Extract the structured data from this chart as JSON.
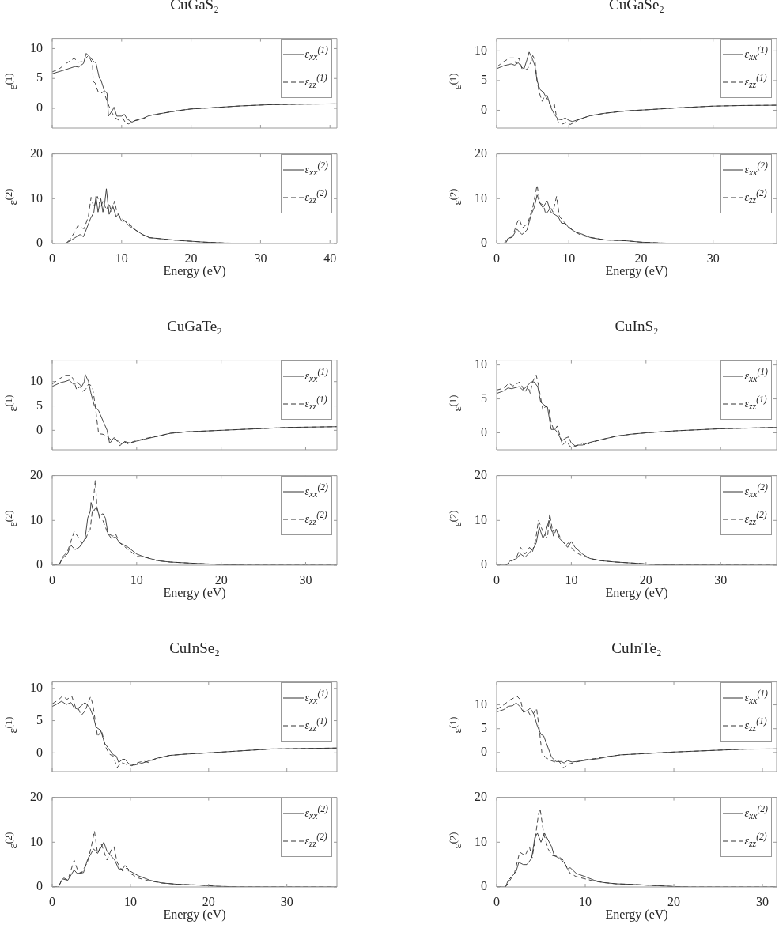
{
  "chart_data": [
    {
      "type": "line",
      "title": "CuGaS₂",
      "ylabel": "ε$^{(1)}$",
      "xlim": [
        0,
        41
      ],
      "xticks": [
        0,
        10,
        20,
        30,
        40
      ],
      "ylim": [
        -3.3,
        11.7
      ],
      "yticks": [
        0,
        5,
        10
      ],
      "tick_labels": "y",
      "legend": "top right",
      "series": [
        {
          "name": "ε$_{xx}$$^{(1)}$",
          "color": "#333333",
          "line_style": "solid",
          "x": [
            0,
            2,
            3.3,
            3.8,
            4.5,
            4.9,
            5.5,
            6,
            6.3,
            6.8,
            7,
            7.5,
            7.9,
            8.1,
            8.7,
            8.9,
            9.3,
            10,
            10.4,
            10.8,
            11.5,
            12,
            13,
            14,
            16,
            18,
            20,
            23,
            27,
            31,
            36,
            41
          ],
          "values": [
            5.8,
            6.5,
            7.0,
            6.9,
            7.5,
            9.2,
            8.5,
            7.8,
            7.6,
            5.0,
            4.8,
            3.0,
            2.5,
            -1.3,
            -0.3,
            0.2,
            -1.3,
            -1.3,
            -1.0,
            -1.8,
            -2.3,
            -2.0,
            -1.7,
            -1.2,
            -0.8,
            -0.4,
            -0.1,
            0.1,
            0.4,
            0.6,
            0.7,
            0.75
          ]
        },
        {
          "name": "ε$_{zz}$$^{(1)}$",
          "color": "#333333",
          "line_style": "dashed",
          "x": [
            0,
            1,
            2,
            3.2,
            3.6,
            4.3,
            5.2,
            5.5,
            5.8,
            5.9,
            6.2,
            6.6,
            7,
            7.4,
            8.2,
            8.5,
            9,
            9.6,
            10.2,
            10.6,
            11,
            11.8,
            13,
            14,
            16,
            18,
            20,
            23,
            27,
            31,
            36,
            41
          ],
          "values": [
            6.1,
            6.6,
            7.5,
            8.4,
            7.7,
            7.8,
            8.8,
            8.2,
            7.5,
            4.5,
            4.2,
            2.8,
            2.5,
            2.8,
            0.3,
            -0.5,
            -1.5,
            -2.0,
            -1.7,
            -2.5,
            -2.6,
            -2.1,
            -1.8,
            -1.2,
            -0.8,
            -0.4,
            -0.1,
            0.1,
            0.4,
            0.6,
            0.7,
            0.75
          ]
        }
      ]
    },
    {
      "type": "line",
      "ylabel": "ε$^{(2)}$",
      "xlabel": "Energy (eV)",
      "xlim": [
        0,
        41
      ],
      "xticks": [
        0,
        10,
        20,
        30,
        40
      ],
      "ylim": [
        0,
        20
      ],
      "yticks": [
        0,
        10,
        20
      ],
      "legend": "top right",
      "series": [
        {
          "name": "ε$_{xx}$$^{(2)}$",
          "color": "#333333",
          "line_style": "solid",
          "x": [
            0,
            1.8,
            2.5,
            3.5,
            4,
            4.5,
            5,
            5.5,
            6,
            6.3,
            6.6,
            7,
            7.3,
            7.6,
            7.8,
            8.2,
            8.7,
            9.2,
            9.5,
            10,
            10.5,
            11,
            12,
            13,
            14,
            16,
            18,
            20,
            22,
            25,
            28,
            32,
            41
          ],
          "values": [
            0,
            0,
            0.5,
            1.5,
            2.0,
            1.5,
            3.5,
            5.5,
            7,
            10.5,
            7,
            10,
            7,
            9.5,
            12.2,
            6.5,
            8.5,
            6,
            6.5,
            5,
            5,
            4,
            3,
            2,
            1.3,
            1.0,
            0.7,
            0.5,
            0.3,
            0.1,
            0.05,
            0.02,
            0
          ]
        },
        {
          "name": "ε$_{zz}$$^{(2)}$",
          "color": "#333333",
          "line_style": "dashed",
          "x": [
            0,
            1.8,
            2.5,
            3.2,
            3.7,
            4.2,
            4.6,
            5.2,
            5.6,
            6,
            6.5,
            7,
            7.3,
            7.8,
            8.2,
            8.5,
            9,
            9.3,
            10,
            11,
            12,
            13,
            14,
            16,
            18,
            20,
            22,
            25,
            28,
            32,
            41
          ],
          "values": [
            0,
            0,
            0.7,
            2.5,
            4,
            3.5,
            3.3,
            6,
            10.3,
            8,
            10.5,
            8,
            9.5,
            7.5,
            9,
            7,
            9.5,
            7,
            5.5,
            4.5,
            3,
            2,
            1.3,
            1.0,
            0.7,
            0.5,
            0.3,
            0.1,
            0.05,
            0.02,
            0
          ]
        }
      ]
    },
    {
      "type": "line",
      "title": "CuGaSe₂",
      "ylabel": "ε$^{(1)}$",
      "xlim": [
        0,
        38.8
      ],
      "xticks": [
        0,
        10,
        20,
        30
      ],
      "ylim": [
        -3.0,
        12.1
      ],
      "yticks": [
        0,
        5,
        10
      ],
      "tick_labels": "y",
      "legend": "top right",
      "series": [
        {
          "name": "ε$_{xx}$$^{(1)}$",
          "color": "#333333",
          "line_style": "solid",
          "x": [
            0,
            1,
            2,
            2.5,
            3,
            3.5,
            3.8,
            4.2,
            4.5,
            5,
            5.3,
            5.6,
            6,
            6.5,
            6.8,
            7,
            7.5,
            8,
            8.5,
            9,
            9.5,
            10,
            10.5,
            11,
            12,
            13,
            15,
            18,
            21,
            25,
            30,
            34,
            38.8
          ],
          "values": [
            7.0,
            7.5,
            7.8,
            7.6,
            8.0,
            7.2,
            7.0,
            8.5,
            9.8,
            8.5,
            7.5,
            5.0,
            3.5,
            3.0,
            2.3,
            2.5,
            0.5,
            -0.7,
            -1.5,
            -1.6,
            -1.3,
            -1.7,
            -1.9,
            -1.7,
            -1.3,
            -0.9,
            -0.5,
            -0.1,
            0.1,
            0.4,
            0.7,
            0.8,
            0.85
          ]
        },
        {
          "name": "ε$_{zz}$$^{(1)}$",
          "color": "#333333",
          "line_style": "dashed",
          "x": [
            0,
            1,
            1.8,
            2.4,
            2.7,
            3.1,
            3.5,
            4,
            4.3,
            4.7,
            5,
            5.3,
            5.6,
            5.9,
            6.3,
            6.7,
            7.2,
            7.6,
            8,
            8.3,
            8.6,
            9.2,
            9.6,
            10.2,
            10.8,
            11.5,
            12,
            13,
            15,
            18,
            21,
            25,
            30,
            34,
            38.8
          ],
          "values": [
            7.3,
            8.2,
            8.8,
            8.8,
            7.8,
            8.8,
            7.0,
            6.8,
            7.0,
            8.0,
            9.2,
            8.5,
            5.0,
            3.0,
            1.5,
            2.5,
            1.5,
            0.5,
            1.0,
            -1.2,
            -2.2,
            -2.3,
            -2.0,
            -2.4,
            -2.0,
            -1.5,
            -1.3,
            -0.9,
            -0.5,
            -0.1,
            0.1,
            0.4,
            0.7,
            0.8,
            0.85
          ]
        }
      ]
    },
    {
      "type": "line",
      "ylabel": "ε$^{(2)}$",
      "xlabel": "Energy (eV)",
      "xlim": [
        0,
        38.8
      ],
      "xticks": [
        0,
        10,
        20,
        30
      ],
      "ylim": [
        0,
        20
      ],
      "yticks": [
        0,
        10,
        20
      ],
      "legend": "top right",
      "series": [
        {
          "name": "ε$_{xx}$$^{(2)}$",
          "color": "#333333",
          "line_style": "solid",
          "x": [
            0,
            1,
            1.6,
            2.2,
            2.8,
            3.5,
            4.2,
            4.8,
            5.2,
            5.6,
            6,
            6.4,
            7,
            7.5,
            8,
            8.5,
            9,
            9.5,
            10,
            11,
            12,
            13,
            15,
            18,
            20,
            23,
            26,
            38.8
          ],
          "values": [
            0,
            0,
            1.2,
            1.5,
            3.2,
            2.0,
            3.0,
            6.5,
            8.0,
            10.8,
            9.0,
            8.0,
            9.5,
            7.0,
            6.5,
            6.0,
            4.5,
            4.5,
            3.5,
            2.5,
            2.0,
            1.3,
            0.8,
            0.6,
            0.3,
            0.1,
            0.02,
            0
          ]
        },
        {
          "name": "ε$_{zz}$$^{(2)}$",
          "color": "#333333",
          "line_style": "dashed",
          "x": [
            0,
            1.2,
            1.6,
            2.2,
            2.8,
            3.1,
            3.6,
            4.3,
            5,
            5.6,
            6,
            6.5,
            6.8,
            7.5,
            7.8,
            8.3,
            8.7,
            9.5,
            10.5,
            11.5,
            12.5,
            15,
            18,
            20,
            23,
            26,
            38.8
          ],
          "values": [
            0,
            0,
            1.0,
            1.5,
            4.5,
            5.5,
            3.5,
            4.5,
            8,
            13,
            9,
            8.5,
            6.5,
            8.0,
            7.0,
            10.5,
            6.0,
            4.5,
            3.0,
            2.0,
            1.5,
            0.8,
            0.6,
            0.3,
            0.1,
            0.02,
            0
          ]
        }
      ]
    },
    {
      "type": "line",
      "title": "CuGaTe₂",
      "ylabel": "ε$^{(1)}$",
      "xlim": [
        0,
        33.7
      ],
      "xticks": [
        0,
        10,
        20,
        30
      ],
      "ylim": [
        -4,
        14.4
      ],
      "yticks": [
        0,
        5,
        10
      ],
      "tick_labels": "y",
      "legend": "top right",
      "series": [
        {
          "name": "ε$_{xx}$$^{(1)}$",
          "color": "#333333",
          "line_style": "solid",
          "x": [
            0,
            1,
            1.5,
            2,
            2.5,
            3,
            3.5,
            3.8,
            3.9,
            4.3,
            4.6,
            5,
            5.5,
            6,
            6.5,
            6.8,
            7.3,
            7.8,
            8.2,
            8.6,
            9,
            9.3,
            10,
            11,
            12.5,
            14,
            16,
            20,
            24,
            28,
            33.7
          ],
          "values": [
            9.0,
            9.8,
            10.0,
            10.3,
            9.5,
            9.8,
            9.0,
            10.0,
            11.5,
            10.0,
            7.5,
            5.0,
            4.0,
            2.0,
            0,
            -2.7,
            -1.5,
            -2.2,
            -2.8,
            -2.3,
            -2.5,
            -2.6,
            -2.2,
            -1.8,
            -1.2,
            -0.6,
            -0.3,
            0,
            0.3,
            0.6,
            0.75
          ]
        },
        {
          "name": "ε$_{zz}$$^{(1)}$",
          "color": "#333333",
          "line_style": "dashed",
          "x": [
            0,
            0.8,
            1.5,
            2.2,
            2.5,
            2.9,
            3.3,
            3.6,
            4,
            4.3,
            4.6,
            4.8,
            5.1,
            5.3,
            5.5,
            6,
            6.5,
            7,
            7.5,
            7.8,
            8,
            8.5,
            9,
            9.6,
            10.5,
            11.5,
            12.5,
            14,
            16,
            20,
            24,
            28,
            33.7
          ],
          "values": [
            9.5,
            10.5,
            11.3,
            11.3,
            10.5,
            8.3,
            9.0,
            8.0,
            8.5,
            9.5,
            9.2,
            8.5,
            5.0,
            2.0,
            -0.7,
            -0.8,
            -1.3,
            -2.0,
            -1.8,
            -2.5,
            -3.2,
            -2.3,
            -2.8,
            -2.3,
            -1.9,
            -1.5,
            -1.2,
            -0.6,
            -0.3,
            0,
            0.3,
            0.6,
            0.75
          ]
        }
      ]
    },
    {
      "type": "line",
      "ylabel": "ε$^{(2)}$",
      "xlabel": "Energy (eV)",
      "xlim": [
        0,
        33.7
      ],
      "xticks": [
        0,
        10,
        20,
        30
      ],
      "ylim": [
        0,
        20
      ],
      "yticks": [
        0,
        10,
        20
      ],
      "legend": "top right",
      "series": [
        {
          "name": "ε$_{xx}$$^{(2)}$",
          "color": "#333333",
          "line_style": "solid",
          "x": [
            0,
            0.8,
            1.2,
            1.8,
            2.2,
            2.7,
            3.2,
            3.6,
            3.9,
            4.2,
            4.5,
            4.6,
            4.9,
            5.2,
            5.6,
            6,
            6.3,
            6.6,
            7,
            7.5,
            8,
            9,
            10,
            11,
            12.5,
            14,
            17,
            20,
            23,
            33.7
          ],
          "values": [
            0,
            0,
            1.5,
            2.5,
            4.5,
            3.5,
            4.0,
            5.0,
            6.0,
            10.5,
            12,
            14,
            12,
            13,
            11,
            11.5,
            10.5,
            7,
            6,
            6.3,
            5,
            4,
            2.5,
            1.8,
            1.0,
            0.7,
            0.4,
            0.15,
            0.02,
            0
          ]
        },
        {
          "name": "ε$_{zz}$$^{(2)}$",
          "color": "#333333",
          "line_style": "dashed",
          "x": [
            0,
            0.8,
            1.3,
            1.8,
            2.6,
            3,
            3.5,
            3.9,
            4.3,
            4.5,
            4.8,
            5.1,
            5.3,
            5.6,
            6,
            6.6,
            7.2,
            7.5,
            8,
            9,
            10,
            11,
            12.5,
            14,
            17,
            20,
            23,
            33.7
          ],
          "values": [
            0,
            0,
            2,
            3,
            7.5,
            6.5,
            5.0,
            5.5,
            7.5,
            8,
            13,
            19,
            13,
            10.5,
            10,
            7,
            6.5,
            7,
            5,
            3.5,
            2.0,
            1.8,
            1.0,
            0.7,
            0.4,
            0.15,
            0.02,
            0
          ]
        }
      ]
    },
    {
      "type": "line",
      "title": "CuInS₂",
      "ylabel": "ε$^{(1)}$",
      "xlim": [
        0,
        37.5
      ],
      "xticks": [
        0,
        10,
        20,
        30
      ],
      "ylim": [
        -2.5,
        10.7
      ],
      "yticks": [
        0,
        5,
        10
      ],
      "tick_labels": "y",
      "legend": "top right",
      "series": [
        {
          "name": "ε$_{xx}$$^{(1)}$",
          "color": "#333333",
          "line_style": "solid",
          "x": [
            0,
            1,
            1.5,
            2,
            3,
            3.5,
            4,
            4.6,
            5,
            5.5,
            5.9,
            6.5,
            6.8,
            7.3,
            7.8,
            8.2,
            8.7,
            9.2,
            9.6,
            10,
            10.5,
            11,
            11.5,
            12.5,
            14,
            16,
            18,
            20,
            24,
            30,
            37.5
          ],
          "values": [
            5.8,
            6.2,
            6.6,
            6.5,
            6.8,
            6.3,
            6.8,
            7.5,
            7.5,
            6.8,
            4.5,
            4.0,
            3.8,
            0.5,
            0.5,
            0,
            -1.2,
            -0.8,
            -0.6,
            -1.5,
            -1.9,
            -1.8,
            -1.8,
            -1.4,
            -1.0,
            -0.5,
            -0.2,
            0,
            0.3,
            0.6,
            0.8
          ]
        },
        {
          "name": "ε$_{zz}$$^{(1)}$",
          "color": "#333333",
          "line_style": "dashed",
          "x": [
            0,
            1,
            1.6,
            2.2,
            3.1,
            3.8,
            4.2,
            4.5,
            4.8,
            5.3,
            5.6,
            6,
            6.2,
            6.6,
            7,
            7.3,
            7.7,
            8.1,
            8.5,
            8.8,
            9.4,
            9.8,
            10.5,
            11.5,
            12,
            12.5,
            14,
            16,
            18,
            20,
            24,
            30,
            37.5
          ],
          "values": [
            6.3,
            6.6,
            7.3,
            6.9,
            7.5,
            6.0,
            6.8,
            5.8,
            7.5,
            8.5,
            7.0,
            4.5,
            3.3,
            4.0,
            3.5,
            1.5,
            0.3,
            1.0,
            -0.5,
            -1.8,
            -1.2,
            -2.0,
            -2.0,
            -1.5,
            -1.9,
            -1.5,
            -1.0,
            -0.5,
            -0.2,
            0,
            0.3,
            0.6,
            0.8
          ]
        }
      ]
    },
    {
      "type": "line",
      "ylabel": "ε$^{(2)}$",
      "xlabel": "Energy (eV)",
      "xlim": [
        0,
        37.5
      ],
      "xticks": [
        0,
        10,
        20,
        30
      ],
      "ylim": [
        0,
        20
      ],
      "yticks": [
        0,
        10,
        20
      ],
      "legend": "top right",
      "series": [
        {
          "name": "ε$_{xx}$$^{(2)}$",
          "color": "#333333",
          "line_style": "solid",
          "x": [
            0,
            1.3,
            1.8,
            2.5,
            3.2,
            3.8,
            4.5,
            5,
            5.3,
            5.7,
            6.2,
            6.5,
            7,
            7.4,
            8,
            8.4,
            9,
            9.5,
            10,
            10.5,
            11.5,
            12.5,
            14,
            16,
            19,
            21,
            24,
            37.5
          ],
          "values": [
            0,
            0,
            1.0,
            1.2,
            2.5,
            1.8,
            3.0,
            4.0,
            5.0,
            8.5,
            6.0,
            7.0,
            10,
            7.5,
            8,
            6,
            5.0,
            4.0,
            5.3,
            4.0,
            2.5,
            1.5,
            1.0,
            0.7,
            0.4,
            0.15,
            0.05,
            0
          ]
        },
        {
          "name": "ε$_{zz}$$^{(2)}$",
          "color": "#333333",
          "line_style": "dashed",
          "x": [
            0,
            1.3,
            2,
            2.6,
            3.2,
            3.8,
            4.4,
            4.8,
            5.2,
            5.6,
            6.2,
            6.8,
            7.1,
            7.6,
            8,
            8.7,
            9.3,
            9.6,
            10.2,
            11,
            12.5,
            14,
            16,
            19,
            21,
            24,
            37.5
          ],
          "values": [
            0,
            0,
            1.0,
            1.5,
            4.0,
            2.5,
            4.0,
            3.0,
            5.5,
            10,
            7.5,
            6.0,
            11.5,
            6.5,
            8.0,
            5.5,
            4.5,
            5.0,
            3.5,
            2.5,
            1.5,
            1.0,
            0.7,
            0.4,
            0.15,
            0.05,
            0
          ]
        }
      ]
    },
    {
      "type": "line",
      "title": "CuInSe₂",
      "ylabel": "ε$^{(1)}$",
      "xlim": [
        0,
        36.4
      ],
      "xticks": [
        0,
        10,
        20,
        30
      ],
      "ylim": [
        -2.9,
        11.0
      ],
      "yticks": [
        0,
        5,
        10
      ],
      "tick_labels": "y",
      "legend": "top right",
      "series": [
        {
          "name": "ε$_{xx}$$^{(1)}$",
          "color": "#333333",
          "line_style": "solid",
          "x": [
            0,
            0.5,
            1.2,
            1.8,
            2.4,
            2.8,
            3.2,
            4.2,
            4.8,
            5.3,
            5.6,
            6.2,
            6.7,
            7.3,
            7.8,
            8.2,
            8.5,
            9,
            9.3,
            9.8,
            10.5,
            11.5,
            12.5,
            13.5,
            15,
            17,
            20,
            24,
            28,
            36.4
          ],
          "values": [
            7.2,
            7.5,
            8.0,
            7.5,
            7.8,
            7.0,
            6.8,
            7.8,
            7.0,
            5.5,
            4.0,
            3.5,
            1.5,
            0.5,
            -0.3,
            -0.5,
            -1.5,
            -1.0,
            -1.0,
            -1.7,
            -1.9,
            -1.6,
            -1.2,
            -0.8,
            -0.4,
            -0.2,
            0,
            0.3,
            0.6,
            0.75
          ]
        },
        {
          "name": "ε$_{zz}$$^{(1)}$",
          "color": "#333333",
          "line_style": "dashed",
          "x": [
            0,
            0.8,
            1.3,
            1.9,
            2.5,
            3,
            3.3,
            3.7,
            4.2,
            4.9,
            5.2,
            5.5,
            5.8,
            6.3,
            6.8,
            7.3,
            7.8,
            8.3,
            8.8,
            9.5,
            10.2,
            11,
            11.7,
            12.3,
            13,
            15,
            17,
            20,
            24,
            28,
            36.4
          ],
          "values": [
            7.6,
            8.2,
            8.8,
            8.3,
            8.8,
            7.0,
            7.0,
            5.8,
            6.5,
            8.7,
            7.5,
            5.0,
            2.5,
            3.5,
            1.0,
            -0.2,
            -0.5,
            -2.3,
            -1.5,
            -1.8,
            -2.0,
            -1.5,
            -1.3,
            -1.5,
            -1.0,
            -0.4,
            -0.2,
            0,
            0.3,
            0.6,
            0.75
          ]
        }
      ]
    },
    {
      "type": "line",
      "ylabel": "ε$^{(2)}$",
      "xlabel": "Energy (eV)",
      "xlim": [
        0,
        36.4
      ],
      "xticks": [
        0,
        10,
        20,
        30
      ],
      "ylim": [
        0,
        20
      ],
      "yticks": [
        0,
        10,
        20
      ],
      "legend": "top right",
      "series": [
        {
          "name": "ε$_{xx}$$^{(2)}$",
          "color": "#333333",
          "line_style": "solid",
          "x": [
            0,
            0.8,
            1.2,
            1.5,
            2,
            2.8,
            3.2,
            4,
            4.5,
            5.3,
            5.8,
            6.3,
            6.6,
            7,
            7.5,
            8,
            8.5,
            9,
            9.3,
            10,
            11,
            12.5,
            14,
            16,
            19,
            21,
            24,
            36.4
          ],
          "values": [
            0,
            0,
            1.5,
            2.0,
            1.5,
            3.8,
            3.0,
            3.2,
            6.0,
            8.5,
            7.5,
            9.0,
            10.0,
            8.0,
            7.0,
            6.0,
            4.0,
            4.0,
            4.8,
            3.5,
            2.5,
            1.5,
            0.9,
            0.6,
            0.4,
            0.15,
            0.02,
            0
          ]
        },
        {
          "name": "ε$_{zz}$$^{(2)}$",
          "color": "#333333",
          "line_style": "dashed",
          "x": [
            0,
            0.8,
            1.3,
            2,
            2.8,
            3.2,
            3.7,
            4.5,
            5,
            5.4,
            5.8,
            6.3,
            7,
            7.6,
            7.9,
            8.3,
            9,
            9.5,
            10,
            11,
            12,
            14,
            16,
            19,
            21,
            24,
            36.4
          ],
          "values": [
            0,
            0,
            1.8,
            1.5,
            6.0,
            4.0,
            3.0,
            5.5,
            9.0,
            12.5,
            7.5,
            9.5,
            6.0,
            8.5,
            9.0,
            5.5,
            3.5,
            4.2,
            3.0,
            2.0,
            1.5,
            0.9,
            0.6,
            0.4,
            0.15,
            0.02,
            0
          ]
        }
      ]
    },
    {
      "type": "line",
      "title": "CuInTe₂",
      "ylabel": "ε$^{(1)}$",
      "xlim": [
        0,
        31.6
      ],
      "xticks": [
        0,
        10,
        20,
        30
      ],
      "ylim": [
        -4.0,
        14.8
      ],
      "yticks": [
        0,
        5,
        10
      ],
      "tick_labels": "y",
      "legend": "top right",
      "series": [
        {
          "name": "ε$_{xx}$$^{(1)}$",
          "color": "#333333",
          "line_style": "solid",
          "x": [
            0,
            0.8,
            1.3,
            1.8,
            2.2,
            2.7,
            3,
            3.5,
            3.8,
            4.2,
            4.6,
            5,
            5.3,
            5.8,
            6.2,
            6.7,
            7.3,
            7.6,
            8,
            8.5,
            9.5,
            10.5,
            11.5,
            12.5,
            14,
            17,
            20,
            24,
            28,
            31.6
          ],
          "values": [
            8.5,
            9.0,
            9.7,
            9.8,
            10.4,
            9.5,
            8.5,
            8.8,
            9.3,
            8.0,
            5.5,
            3.8,
            3.5,
            1.0,
            -1.0,
            -1.9,
            -1.9,
            -2.2,
            -1.7,
            -2.0,
            -1.8,
            -1.5,
            -1.3,
            -0.9,
            -0.5,
            -0.2,
            0.1,
            0.4,
            0.7,
            0.75
          ]
        },
        {
          "name": "ε$_{zz}$$^{(1)}$",
          "color": "#333333",
          "line_style": "dashed",
          "x": [
            0,
            0.8,
            1.5,
            2.3,
            2.7,
            3,
            3.5,
            3.8,
            4.1,
            4.5,
            4.8,
            5.1,
            5.5,
            6,
            6.6,
            7,
            7.3,
            7.6,
            8,
            9,
            10,
            11,
            12,
            14,
            17,
            20,
            24,
            28,
            31.6
          ],
          "values": [
            9.0,
            10.0,
            11.0,
            11.8,
            11.0,
            8.5,
            8.8,
            7.8,
            8.0,
            9.3,
            5.0,
            0,
            -1.0,
            -1.6,
            -2.0,
            -1.8,
            -2.5,
            -3.3,
            -2.5,
            -2.0,
            -1.5,
            -1.3,
            -1.0,
            -0.5,
            -0.2,
            0.1,
            0.4,
            0.7,
            0.75
          ]
        }
      ]
    },
    {
      "type": "line",
      "ylabel": "ε$^{(2)}$",
      "xlabel": "Energy (eV)",
      "xlim": [
        0,
        31.6
      ],
      "xticks": [
        0,
        10,
        20,
        30
      ],
      "ylim": [
        0,
        20
      ],
      "yticks": [
        0,
        10,
        20
      ],
      "legend": "top right",
      "series": [
        {
          "name": "ε$_{xx}$$^{(2)}$",
          "color": "#333333",
          "line_style": "solid",
          "x": [
            0,
            1,
            1.3,
            1.8,
            2.2,
            2.5,
            3,
            3.4,
            3.8,
            4,
            4.3,
            4.6,
            5,
            5.4,
            5.8,
            6.2,
            6.5,
            7,
            7.6,
            8,
            8.3,
            9,
            10,
            11,
            12,
            13.5,
            15,
            18,
            20,
            22,
            31.6
          ],
          "values": [
            0,
            0,
            1.5,
            2.5,
            3.5,
            5.5,
            5.0,
            5.0,
            6.0,
            7.0,
            11,
            12,
            10,
            12,
            10.5,
            9.0,
            7.0,
            6.5,
            5.5,
            4.0,
            4.3,
            3.0,
            2.3,
            1.5,
            1.0,
            0.7,
            0.6,
            0.3,
            0.1,
            0,
            0
          ]
        },
        {
          "name": "ε$_{zz}$$^{(2)}$",
          "color": "#333333",
          "line_style": "dashed",
          "x": [
            0,
            1,
            1.5,
            2,
            2.6,
            3.2,
            3.7,
            4,
            4.3,
            4.7,
            4.9,
            5.3,
            5.8,
            6.3,
            7,
            7.5,
            8.3,
            9,
            10,
            11,
            12,
            13.5,
            15,
            18,
            20,
            22,
            31.6
          ],
          "values": [
            0,
            0,
            1.5,
            3.0,
            7.8,
            7.0,
            9.0,
            6.5,
            10,
            16,
            17.5,
            12,
            8.5,
            7.0,
            6.8,
            6.0,
            3.0,
            2.3,
            1.8,
            1.3,
            1.0,
            0.7,
            0.6,
            0.3,
            0.1,
            0,
            0
          ]
        }
      ]
    }
  ]
}
